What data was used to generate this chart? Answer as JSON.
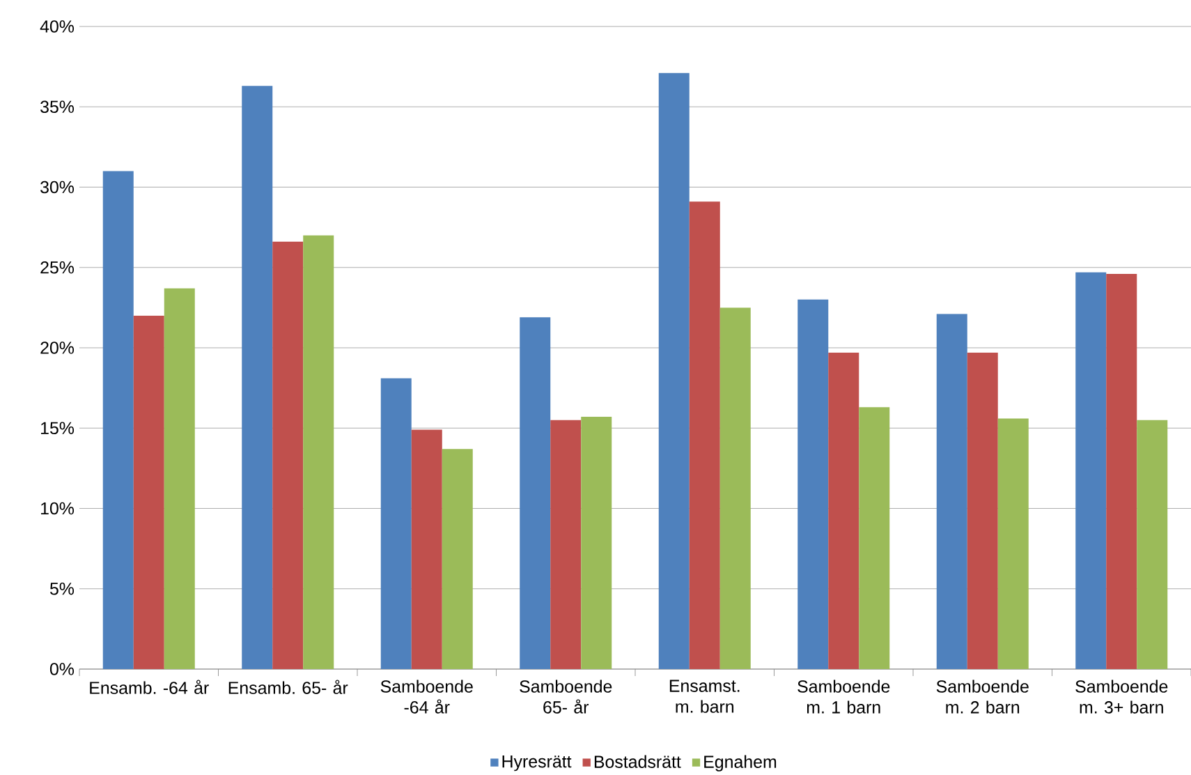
{
  "chart_data": {
    "type": "bar",
    "categories": [
      "Ensamb. -64 år",
      "Ensamb. 65- år",
      "Samboende -64 år",
      "Samboende 65- år",
      "Ensamst. m. barn",
      "Samboende m. 1 barn",
      "Samboende m. 2 barn",
      "Samboende m. 3+ barn"
    ],
    "series": [
      {
        "name": "Hyresrätt",
        "color": "#4f81bd",
        "values": [
          31.0,
          36.3,
          18.1,
          21.9,
          37.1,
          23.0,
          22.1,
          24.7
        ]
      },
      {
        "name": "Bostadsrätt",
        "color": "#c0504d",
        "values": [
          22.0,
          26.6,
          14.9,
          15.5,
          29.1,
          19.7,
          19.7,
          24.6
        ]
      },
      {
        "name": "Egnahem",
        "color": "#9bbb59",
        "values": [
          23.7,
          27.0,
          13.7,
          15.7,
          22.5,
          16.3,
          15.6,
          15.5
        ]
      }
    ],
    "ylim": [
      0,
      40
    ],
    "yticks": [
      {
        "value": 0,
        "label": "0%"
      },
      {
        "value": 5,
        "label": "5%"
      },
      {
        "value": 10,
        "label": "10%"
      },
      {
        "value": 15,
        "label": "15%"
      },
      {
        "value": 20,
        "label": "20%"
      },
      {
        "value": 25,
        "label": "25%"
      },
      {
        "value": 30,
        "label": "30%"
      },
      {
        "value": 35,
        "label": "35%"
      },
      {
        "value": 40,
        "label": "40%"
      }
    ],
    "grid": "y",
    "legend": "bottom"
  }
}
